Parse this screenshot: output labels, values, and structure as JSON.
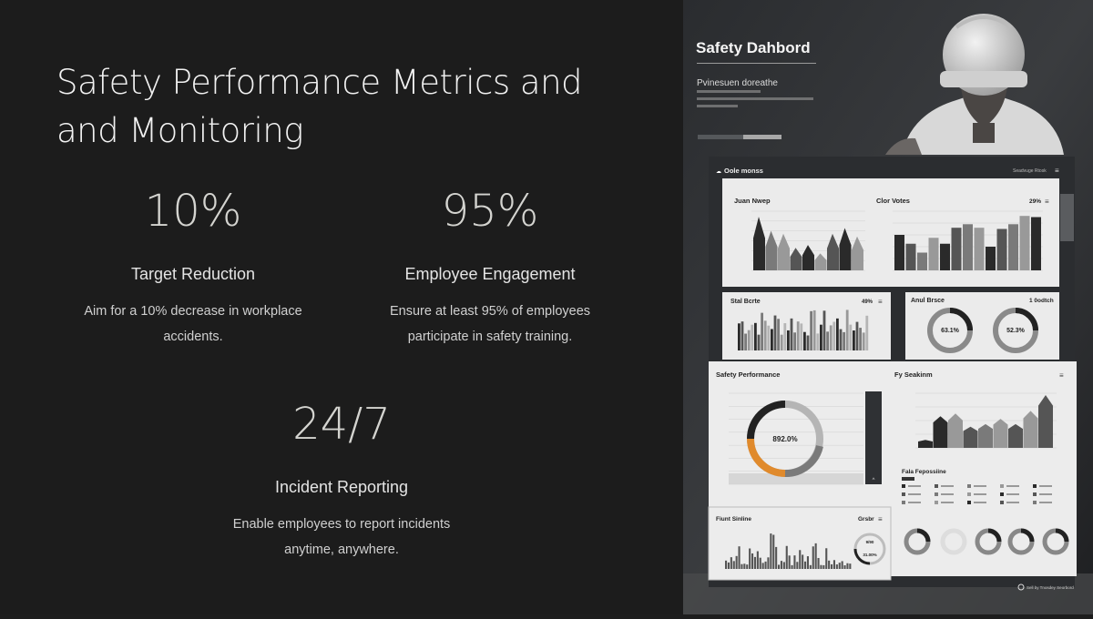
{
  "slide": {
    "title": "Safety Performance Metrics and and Monitoring",
    "stats": [
      {
        "value": "10%",
        "label": "Target Reduction",
        "description": "Aim for a 10% decrease in workplace accidents."
      },
      {
        "value": "95%",
        "label": "Employee Engagement",
        "description": "Ensure at least 95% of employees participate in safety training."
      },
      {
        "value": "24/7",
        "label": "Incident Reporting",
        "description": "Enable employees to report incidents anytime, anywhere."
      }
    ]
  },
  "image": {
    "heading": "Safety Dahbord",
    "subheading": "Pvinesuen doreathe",
    "header_left": "Oole monss",
    "header_right": "Seadvuge Rtosk",
    "panels": {
      "p1a_title": "Juan Nwep",
      "p1b_title": "Clor Votes",
      "p1b_value": "29%",
      "p2_title": "Stal Bcrte",
      "p2_value": "49%",
      "p3_title": "Anul Brsce",
      "p3_value": "1 0odtch",
      "donut_a": "63.1%",
      "donut_b": "52.3%",
      "p4_title": "Safety Performance",
      "p4_donut": "892.0%",
      "p4b_title": "Fy Seakinm",
      "p4c_title": "Fala Fepossiine",
      "p5_title": "Fiunt Sinline",
      "p5_value": "Grsbr",
      "p5_donut_top": "9/90",
      "p5_donut_bottom": "31.00%"
    },
    "footer": "Sell by Tnosdey Seorbord",
    "accent_color": "#e08a2c"
  }
}
